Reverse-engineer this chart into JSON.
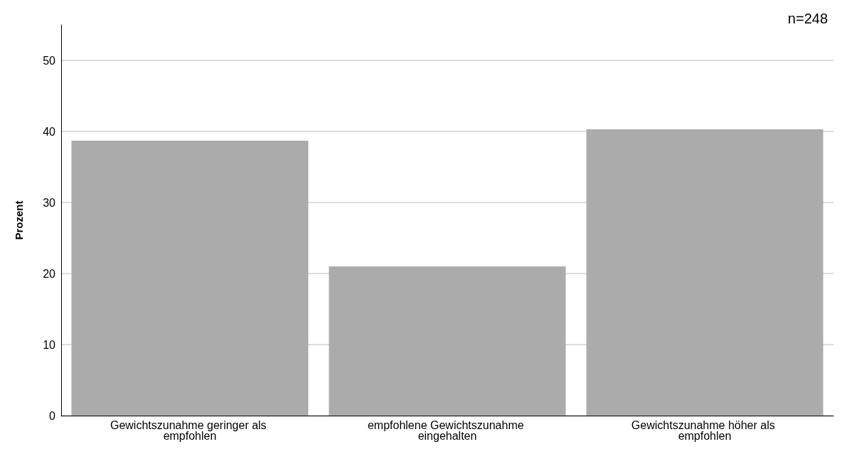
{
  "chart_data": {
    "type": "bar",
    "ylabel": "Prozent",
    "categories": [
      "Gewichtszunahme geringer als empfohlen",
      "empfohlene Gewichtszunahme eingehalten",
      "Gewichtszunahme höher als empfohlen"
    ],
    "values": [
      38.7,
      21.0,
      40.3
    ],
    "color": "#ababab",
    "ylim": [
      0,
      55
    ],
    "yticks": [
      0,
      10,
      20,
      30,
      40,
      50
    ],
    "grid": "y",
    "annotations": [
      "n=248"
    ]
  }
}
